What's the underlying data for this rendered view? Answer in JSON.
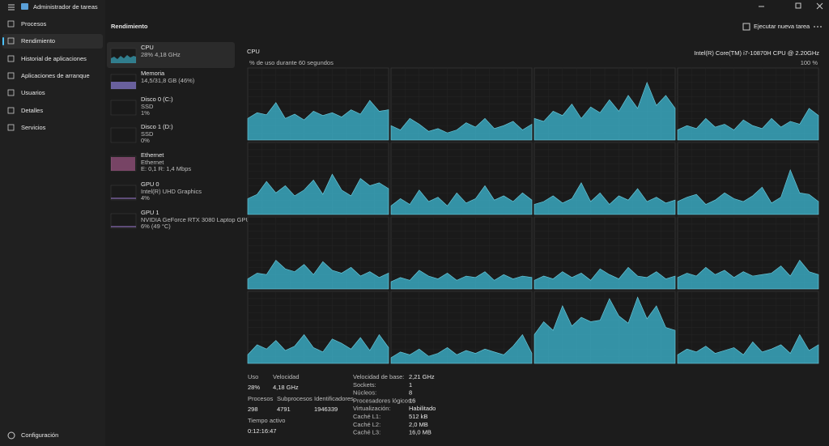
{
  "window": {
    "title": "Administrador de tareas"
  },
  "nav": {
    "items": [
      "Procesos",
      "Rendimiento",
      "Historial de aplicaciones",
      "Aplicaciones de arranque",
      "Usuarios",
      "Detalles",
      "Servicios"
    ],
    "settings": "Configuración"
  },
  "header": {
    "title": "Rendimiento",
    "action": "Ejecutar nueva tarea"
  },
  "devices": [
    {
      "name": "CPU",
      "lines": [
        "28% 4,18 GHz"
      ]
    },
    {
      "name": "Memoria",
      "lines": [
        "14,5/31,8 GB (46%)"
      ]
    },
    {
      "name": "Disco 0 (C:)",
      "lines": [
        "SSD",
        "1%"
      ]
    },
    {
      "name": "Disco 1 (D:)",
      "lines": [
        "SSD",
        "0%"
      ]
    },
    {
      "name": "Ethernet",
      "lines": [
        "Ethernet",
        "E: 0,1 R: 1,4 Mbps"
      ]
    },
    {
      "name": "GPU 0",
      "lines": [
        "Intel(R) UHD Graphics",
        "4%"
      ]
    },
    {
      "name": "GPU 1",
      "lines": [
        "NVIDIA GeForce RTX 3080 Laptop GPU",
        "6% (49 °C)"
      ]
    }
  ],
  "cpu": {
    "title": "CPU",
    "model": "Intel(R) Core(TM) i7-10870H CPU @ 2.20GHz",
    "graph_label": "% de uso durante 60 segundos",
    "max_label": "100 %",
    "ylim": [
      0,
      100
    ],
    "color": "#3aa8bf",
    "cores": [
      [
        30,
        38,
        35,
        52,
        30,
        36,
        28,
        40,
        34,
        38,
        32,
        42,
        36,
        55,
        40,
        42
      ],
      [
        20,
        14,
        30,
        22,
        12,
        16,
        10,
        14,
        24,
        18,
        30,
        16,
        20,
        26,
        14,
        22
      ],
      [
        30,
        26,
        40,
        34,
        50,
        30,
        46,
        38,
        56,
        40,
        62,
        44,
        80,
        48,
        62,
        44
      ],
      [
        14,
        20,
        16,
        30,
        18,
        22,
        14,
        28,
        20,
        16,
        30,
        18,
        26,
        22,
        44,
        34
      ],
      [
        22,
        28,
        46,
        30,
        40,
        26,
        34,
        48,
        28,
        56,
        34,
        26,
        50,
        40,
        44,
        36
      ],
      [
        12,
        22,
        14,
        34,
        18,
        24,
        12,
        30,
        16,
        22,
        40,
        20,
        26,
        18,
        30,
        20
      ],
      [
        14,
        18,
        26,
        16,
        22,
        44,
        18,
        30,
        14,
        26,
        20,
        36,
        18,
        24,
        16,
        20
      ],
      [
        18,
        24,
        28,
        14,
        20,
        30,
        22,
        18,
        26,
        38,
        16,
        24,
        62,
        30,
        28,
        18
      ],
      [
        14,
        22,
        20,
        40,
        28,
        24,
        34,
        20,
        38,
        26,
        22,
        30,
        18,
        24,
        16,
        22
      ],
      [
        10,
        16,
        12,
        26,
        18,
        14,
        22,
        12,
        18,
        16,
        24,
        12,
        20,
        14,
        18,
        16
      ],
      [
        12,
        18,
        14,
        24,
        16,
        22,
        12,
        28,
        20,
        14,
        30,
        18,
        16,
        24,
        14,
        18
      ],
      [
        16,
        22,
        18,
        30,
        20,
        26,
        16,
        24,
        18,
        20,
        22,
        32,
        18,
        40,
        24,
        20
      ],
      [
        12,
        26,
        20,
        32,
        18,
        24,
        40,
        22,
        16,
        34,
        28,
        20,
        36,
        18,
        40,
        22
      ],
      [
        8,
        16,
        12,
        20,
        10,
        14,
        22,
        12,
        18,
        14,
        20,
        16,
        12,
        24,
        40,
        14
      ],
      [
        40,
        58,
        46,
        80,
        52,
        64,
        58,
        60,
        90,
        66,
        56,
        92,
        62,
        80,
        50,
        46
      ],
      [
        12,
        20,
        16,
        24,
        14,
        18,
        22,
        12,
        30,
        16,
        20,
        26,
        14,
        40,
        18,
        26
      ]
    ]
  },
  "stats": {
    "primary": [
      {
        "label": "Uso",
        "value": "28%"
      },
      {
        "label": "Velocidad",
        "value": "4,18 GHz"
      },
      {
        "label": "Procesos",
        "value": "298"
      },
      {
        "label": "Subprocesos",
        "value": "4791"
      },
      {
        "label": "Identificadores",
        "value": "1946339"
      },
      {
        "label": "Tiempo activo",
        "value": "0:12:16:47"
      }
    ],
    "details": [
      {
        "label": "Velocidad de base:",
        "value": "2,21 GHz"
      },
      {
        "label": "Sockets:",
        "value": "1"
      },
      {
        "label": "Núcleos:",
        "value": "8"
      },
      {
        "label": "Procesadores lógicos:",
        "value": "16"
      },
      {
        "label": "Virtualización:",
        "value": "Habilitado"
      },
      {
        "label": "Caché L1:",
        "value": "512 kB"
      },
      {
        "label": "Caché L2:",
        "value": "2,0 MB"
      },
      {
        "label": "Caché L3:",
        "value": "16,0 MB"
      }
    ]
  }
}
